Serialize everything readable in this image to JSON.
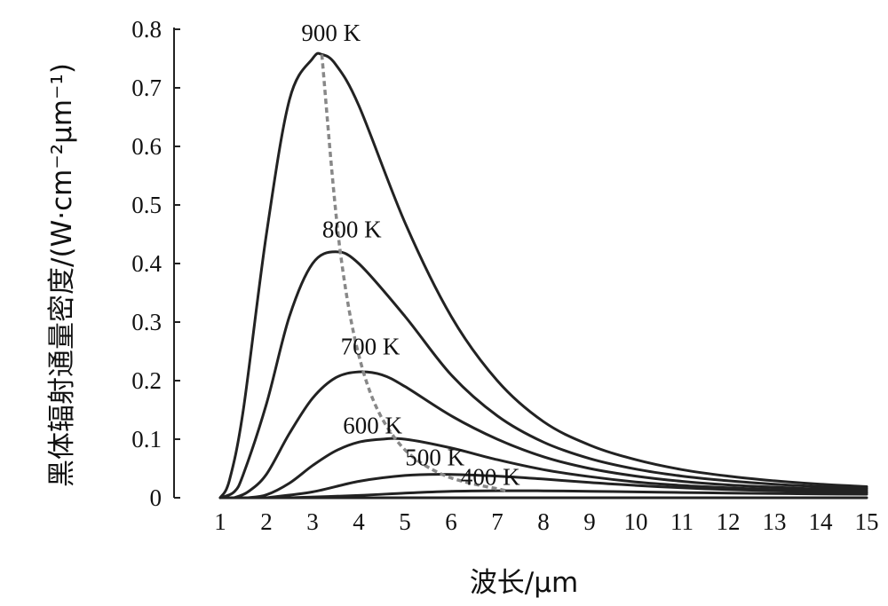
{
  "chart_data": {
    "type": "line",
    "xlabel": "波长/μm",
    "ylabel": "黑体辐射通量密度/(W·cm⁻²μm⁻¹)",
    "xlim": [
      0,
      15
    ],
    "ylim": [
      0,
      0.8
    ],
    "x_ticks": [
      1,
      2,
      3,
      4,
      5,
      6,
      7,
      8,
      9,
      10,
      11,
      12,
      13,
      14,
      15
    ],
    "y_ticks": [
      0,
      0.1,
      0.2,
      0.3,
      0.4,
      0.5,
      0.6,
      0.7,
      0.8
    ],
    "x_tick_labels": [
      "1",
      "2",
      "3",
      "4",
      "5",
      "6",
      "7",
      "8",
      "9",
      "10",
      "11",
      "12",
      "13",
      "14",
      "15"
    ],
    "y_tick_labels": [
      "0",
      "0.1",
      "0.2",
      "0.3",
      "0.4",
      "0.5",
      "0.6",
      "0.7",
      "0.8"
    ],
    "grid": false,
    "series": [
      {
        "name": "900 K",
        "x": [
          1.0,
          1.2,
          1.5,
          2.0,
          2.5,
          3.0,
          3.2,
          3.5,
          4.0,
          5.0,
          6.0,
          7.0,
          8.0,
          9.0,
          10.0,
          11.0,
          12.0,
          13.0,
          14.0,
          15.0
        ],
        "y": [
          0.0,
          0.03,
          0.15,
          0.45,
          0.68,
          0.75,
          0.757,
          0.74,
          0.67,
          0.47,
          0.31,
          0.2,
          0.13,
          0.09,
          0.065,
          0.048,
          0.037,
          0.029,
          0.023,
          0.019
        ]
      },
      {
        "name": "800 K",
        "x": [
          1.0,
          1.3,
          1.5,
          2.0,
          2.5,
          3.0,
          3.5,
          4.0,
          5.0,
          6.0,
          7.0,
          8.0,
          9.0,
          10.0,
          11.0,
          12.0,
          13.0,
          14.0,
          15.0
        ],
        "y": [
          0.0,
          0.01,
          0.04,
          0.16,
          0.31,
          0.4,
          0.42,
          0.4,
          0.31,
          0.21,
          0.14,
          0.095,
          0.067,
          0.049,
          0.037,
          0.029,
          0.023,
          0.019,
          0.016
        ]
      },
      {
        "name": "700 K",
        "x": [
          1.3,
          1.6,
          2.0,
          2.5,
          3.0,
          3.5,
          4.0,
          4.5,
          5.0,
          6.0,
          7.0,
          8.0,
          9.0,
          10.0,
          11.0,
          12.0,
          13.0,
          14.0,
          15.0
        ],
        "y": [
          0.0,
          0.01,
          0.04,
          0.11,
          0.17,
          0.205,
          0.215,
          0.21,
          0.19,
          0.14,
          0.1,
          0.07,
          0.05,
          0.037,
          0.028,
          0.022,
          0.018,
          0.015,
          0.013
        ]
      },
      {
        "name": "600 K",
        "x": [
          1.6,
          2.0,
          2.5,
          3.0,
          3.5,
          4.0,
          4.5,
          5.0,
          6.0,
          7.0,
          8.0,
          9.0,
          10.0,
          11.0,
          12.0,
          13.0,
          14.0,
          15.0
        ],
        "y": [
          0.0,
          0.005,
          0.025,
          0.055,
          0.08,
          0.095,
          0.1,
          0.1,
          0.085,
          0.065,
          0.048,
          0.036,
          0.027,
          0.021,
          0.017,
          0.014,
          0.012,
          0.01
        ]
      },
      {
        "name": "500 K",
        "x": [
          2.0,
          3.0,
          4.0,
          5.0,
          5.8,
          7.0,
          8.0,
          9.0,
          10.0,
          11.0,
          12.0,
          13.0,
          14.0,
          15.0
        ],
        "y": [
          0.0,
          0.01,
          0.028,
          0.038,
          0.04,
          0.037,
          0.032,
          0.026,
          0.021,
          0.017,
          0.014,
          0.012,
          0.01,
          0.009
        ]
      },
      {
        "name": "400 K",
        "x": [
          2.5,
          4.0,
          5.0,
          6.0,
          7.2,
          8.0,
          9.0,
          10.0,
          11.0,
          12.0,
          13.0,
          14.0,
          15.0
        ],
        "y": [
          0.0,
          0.004,
          0.008,
          0.011,
          0.012,
          0.0118,
          0.011,
          0.01,
          0.009,
          0.008,
          0.0072,
          0.0065,
          0.006
        ]
      }
    ],
    "peak_locus": {
      "x": [
        3.2,
        3.6,
        4.1,
        4.8,
        5.8,
        7.2
      ],
      "y": [
        0.757,
        0.42,
        0.215,
        0.1,
        0.04,
        0.012
      ]
    },
    "series_labels": [
      {
        "text": "900 K",
        "x": 3.4,
        "y": 0.78
      },
      {
        "text": "800 K",
        "x": 3.85,
        "y": 0.445
      },
      {
        "text": "700 K",
        "x": 4.25,
        "y": 0.245
      },
      {
        "text": "600 K",
        "x": 4.3,
        "y": 0.11
      },
      {
        "text": "500 K",
        "x": 5.65,
        "y": 0.055
      },
      {
        "text": "400 K",
        "x": 6.85,
        "y": 0.022
      }
    ]
  }
}
